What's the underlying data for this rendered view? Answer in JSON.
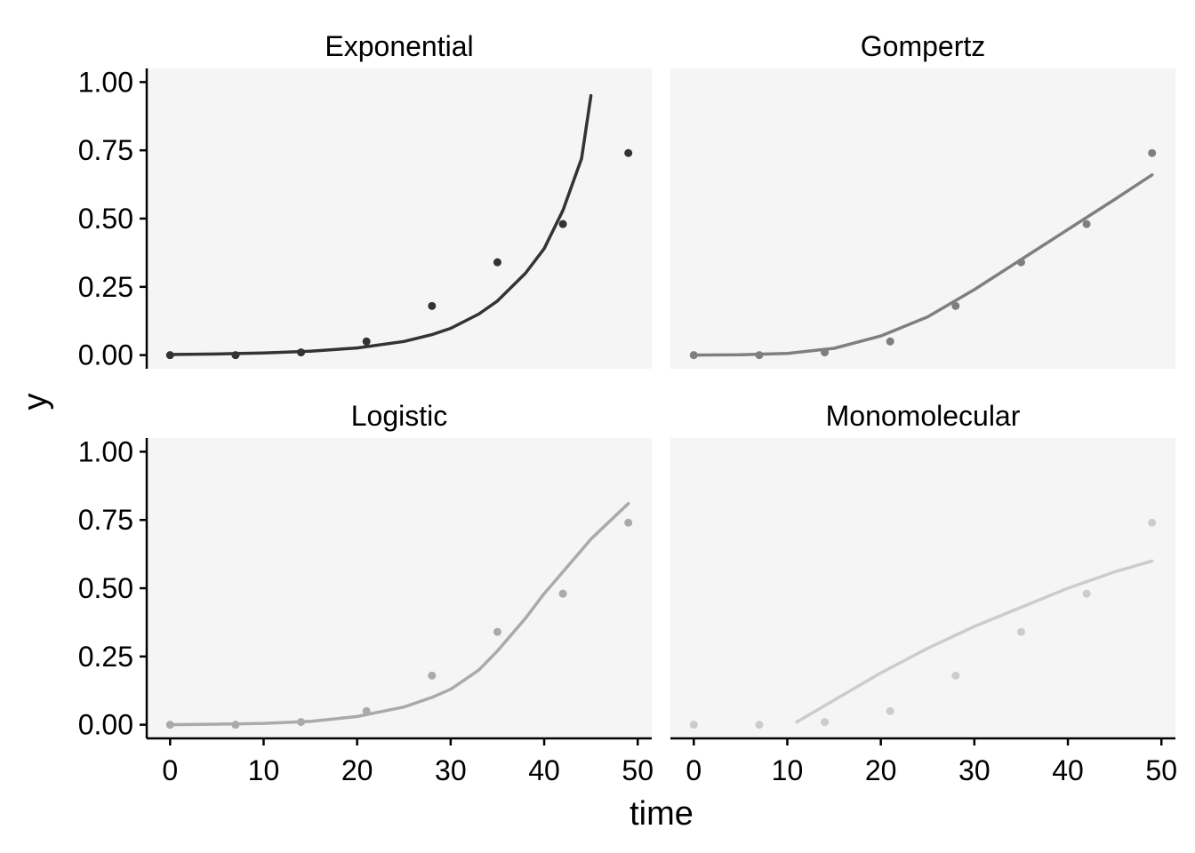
{
  "chart_data": {
    "type": "scatter",
    "facet_layout": "2x2",
    "xlabel": "time",
    "ylabel": "y",
    "xlim": [
      -2.5,
      51.5
    ],
    "ylim": [
      -0.05,
      1.05
    ],
    "xticks": [
      0,
      10,
      20,
      30,
      40,
      50
    ],
    "xtick_labels": [
      "0",
      "10",
      "20",
      "30",
      "40",
      "50"
    ],
    "yticks": [
      0,
      0.25,
      0.5,
      0.75,
      1.0
    ],
    "ytick_labels": [
      "0.00",
      "0.25",
      "0.50",
      "0.75",
      "1.00"
    ],
    "grid": false,
    "legend": "none",
    "observed": {
      "x": [
        0,
        7,
        14,
        21,
        28,
        35,
        42,
        49
      ],
      "y": [
        0.0,
        0.0,
        0.01,
        0.05,
        0.18,
        0.34,
        0.48,
        0.74
      ]
    },
    "panels": [
      {
        "title": "Exponential",
        "color": "#333333",
        "fit": {
          "x": [
            0,
            5,
            10,
            15,
            20,
            25,
            28,
            30,
            33,
            35,
            38,
            40,
            42,
            44,
            45
          ],
          "y": [
            0.002,
            0.004,
            0.008,
            0.014,
            0.026,
            0.05,
            0.075,
            0.098,
            0.15,
            0.198,
            0.3,
            0.39,
            0.53,
            0.72,
            0.95
          ]
        }
      },
      {
        "title": "Gompertz",
        "color": "#7f7f7f",
        "fit": {
          "x": [
            0,
            5,
            10,
            15,
            20,
            25,
            30,
            35,
            40,
            45,
            49
          ],
          "y": [
            0.0,
            0.001,
            0.006,
            0.025,
            0.07,
            0.14,
            0.24,
            0.35,
            0.46,
            0.57,
            0.66
          ]
        }
      },
      {
        "title": "Logistic",
        "color": "#aaaaaa",
        "fit": {
          "x": [
            0,
            5,
            10,
            15,
            20,
            25,
            28,
            30,
            33,
            35,
            38,
            40,
            42,
            45,
            49
          ],
          "y": [
            0.0,
            0.002,
            0.005,
            0.012,
            0.03,
            0.065,
            0.1,
            0.13,
            0.2,
            0.27,
            0.39,
            0.48,
            0.56,
            0.68,
            0.81
          ]
        }
      },
      {
        "title": "Monomolecular",
        "color": "#cccccc",
        "fit": {
          "x": [
            11,
            15,
            20,
            25,
            30,
            35,
            40,
            45,
            49
          ],
          "y": [
            0.01,
            0.09,
            0.19,
            0.28,
            0.36,
            0.43,
            0.5,
            0.56,
            0.6
          ]
        }
      }
    ]
  }
}
